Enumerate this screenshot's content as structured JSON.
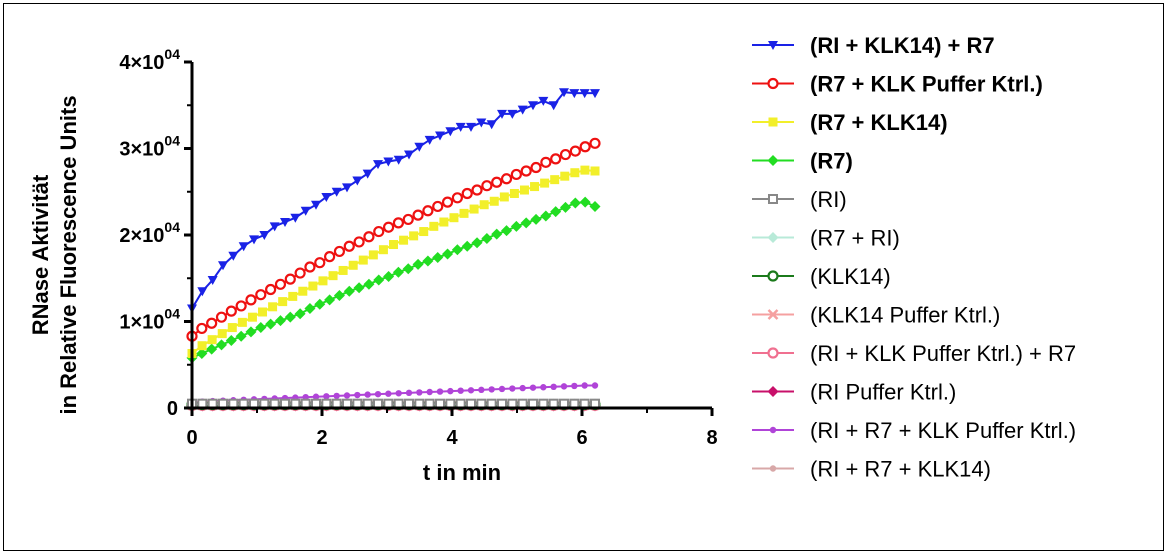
{
  "chart_data": {
    "type": "line",
    "xlabel": "t in min",
    "ylabel_line1": "RNase Aktivität",
    "ylabel_line2": "in Relative Fluorescence Units",
    "xlim": [
      0,
      8
    ],
    "ylim": [
      0,
      40000
    ],
    "x_ticks": [
      "0",
      "2",
      "4",
      "6",
      "8"
    ],
    "y_ticks": [
      {
        "mantissa": "0",
        "exp": ""
      },
      {
        "mantissa": "1×10",
        "exp": "04"
      },
      {
        "mantissa": "2×10",
        "exp": "04"
      },
      {
        "mantissa": "3×10",
        "exp": "04"
      },
      {
        "mantissa": "4×10",
        "exp": "04"
      }
    ],
    "legend_position": "right",
    "series": [
      {
        "name": "(RI + KLK14) + R7",
        "color": "#1a22e6",
        "marker": "triangle-down",
        "bold": true,
        "x_start": 0,
        "x_end": 6.2,
        "values": [
          11500,
          13500,
          14800,
          16500,
          17600,
          18700,
          19500,
          20000,
          21000,
          21500,
          22000,
          22800,
          23500,
          24400,
          25000,
          25500,
          26300,
          27100,
          28200,
          28500,
          28700,
          29300,
          30200,
          31000,
          31500,
          32000,
          32500,
          32500,
          33000,
          32800,
          34000,
          34000,
          34500,
          35000,
          35500,
          35000,
          36500,
          36400,
          36400,
          36400
        ]
      },
      {
        "name": "(R7 + KLK Puffer Ktrl.)",
        "color": "#ee1111",
        "marker": "circle",
        "bold": true,
        "x_start": 0,
        "x_end": 6.2,
        "values": [
          8300,
          9200,
          9800,
          10500,
          11200,
          11800,
          12500,
          13100,
          13700,
          14300,
          14900,
          15600,
          16300,
          16800,
          17500,
          18100,
          18700,
          19200,
          19800,
          20400,
          20900,
          21400,
          21800,
          22300,
          22800,
          23300,
          23800,
          24300,
          24800,
          25200,
          25700,
          26100,
          26500,
          27000,
          27400,
          27800,
          28400,
          28800,
          29300,
          29700,
          30200,
          30600
        ]
      },
      {
        "name": "(R7 + KLK14)",
        "color": "#f2ef2a",
        "marker": "square",
        "bold": true,
        "x_start": 0,
        "x_end": 6.2,
        "values": [
          6300,
          7200,
          7900,
          8600,
          9300,
          9900,
          10500,
          11100,
          11700,
          12300,
          12900,
          13500,
          14100,
          14700,
          15300,
          15900,
          16500,
          17100,
          17700,
          18300,
          18900,
          19400,
          19900,
          20400,
          21000,
          21500,
          22000,
          22500,
          23000,
          23500,
          23900,
          24400,
          24800,
          25200,
          25600,
          26000,
          26400,
          26800,
          27200,
          27500,
          27400
        ]
      },
      {
        "name": "(R7)",
        "color": "#22dd22",
        "marker": "diamond",
        "bold": true,
        "x_start": 0,
        "x_end": 6.2,
        "values": [
          5800,
          6300,
          6800,
          7300,
          7800,
          8300,
          8800,
          9300,
          9700,
          10100,
          10500,
          10900,
          11500,
          12000,
          12500,
          13000,
          13500,
          13900,
          14300,
          14800,
          15200,
          15700,
          16100,
          16600,
          17000,
          17400,
          17800,
          18300,
          18700,
          19100,
          19600,
          20100,
          20500,
          21000,
          21400,
          21800,
          22200,
          22700,
          23200,
          23700,
          23800,
          23300
        ]
      },
      {
        "name": "(RI)",
        "color": "#888888",
        "marker": "square-open",
        "bold": false,
        "x_start": 0,
        "x_end": 6.2,
        "constant": 500
      },
      {
        "name": "(R7 + RI)",
        "color": "#b8ead8",
        "marker": "diamond",
        "bold": false,
        "x_start": 0,
        "x_end": 6.2,
        "constant": 450
      },
      {
        "name": "(KLK14)",
        "color": "#1b7a1b",
        "marker": "circle",
        "bold": false,
        "x_start": 0,
        "x_end": 6.2,
        "constant": 400
      },
      {
        "name": "(KLK14 Puffer Ktrl.)",
        "color": "#f5a0a0",
        "marker": "x",
        "bold": false,
        "x_start": 0,
        "x_end": 6.2,
        "constant": 350
      },
      {
        "name": "(RI + KLK Puffer Ktrl.) + R7",
        "color": "#f07090",
        "marker": "circle",
        "bold": false,
        "x_start": 0,
        "x_end": 6.2,
        "constant": 300
      },
      {
        "name": "(RI Puffer Ktrl.)",
        "color": "#c8106a",
        "marker": "diamond",
        "bold": false,
        "x_start": 0,
        "x_end": 6.2,
        "constant": 250
      },
      {
        "name": "(RI + R7 + KLK Puffer Ktrl.)",
        "color": "#b044d8",
        "marker": "circle-small",
        "bold": false,
        "x_start": 0,
        "x_end": 6.2,
        "values": [
          700,
          750,
          800,
          850,
          900,
          950,
          1000,
          1050,
          1100,
          1150,
          1200,
          1250,
          1300,
          1350,
          1400,
          1450,
          1500,
          1550,
          1600,
          1650,
          1700,
          1750,
          1800,
          1850,
          1900,
          1950,
          2000,
          2050,
          2100,
          2150,
          2200,
          2250,
          2300,
          2350,
          2400,
          2450,
          2500,
          2550,
          2600,
          2600
        ]
      },
      {
        "name": "(RI + R7 + KLK14)",
        "color": "#d8a8a8",
        "marker": "circle-small",
        "bold": false,
        "x_start": 0,
        "x_end": 6.2,
        "constant": 200
      }
    ]
  }
}
